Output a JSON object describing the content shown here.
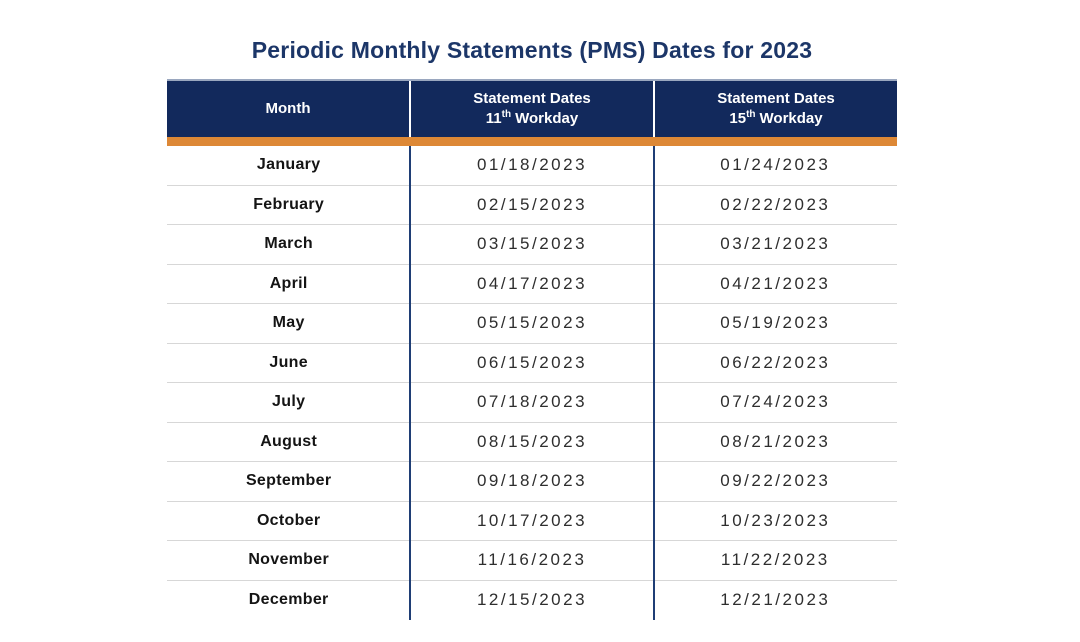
{
  "title": "Periodic Monthly Statements (PMS) Dates for 2023",
  "table": {
    "header": {
      "col_month": "Month",
      "col11_line1": "Statement Dates",
      "col11_num": "11",
      "col11_sup": "th",
      "col11_rest": "Workday",
      "col15_line1": "Statement Dates",
      "col15_num": "15",
      "col15_sup": "th",
      "col15_rest": "Workday"
    },
    "rows": [
      {
        "month": "January",
        "wd11": "01/18/2023",
        "wd15": "01/24/2023"
      },
      {
        "month": "February",
        "wd11": "02/15/2023",
        "wd15": "02/22/2023"
      },
      {
        "month": "March",
        "wd11": "03/15/2023",
        "wd15": "03/21/2023"
      },
      {
        "month": "April",
        "wd11": "04/17/2023",
        "wd15": "04/21/2023"
      },
      {
        "month": "May",
        "wd11": "05/15/2023",
        "wd15": "05/19/2023"
      },
      {
        "month": "June",
        "wd11": "06/15/2023",
        "wd15": "06/22/2023"
      },
      {
        "month": "July",
        "wd11": "07/18/2023",
        "wd15": "07/24/2023"
      },
      {
        "month": "August",
        "wd11": "08/15/2023",
        "wd15": "08/21/2023"
      },
      {
        "month": "September",
        "wd11": "09/18/2023",
        "wd15": "09/22/2023"
      },
      {
        "month": "October",
        "wd11": "10/17/2023",
        "wd15": "10/23/2023"
      },
      {
        "month": "November",
        "wd11": "11/16/2023",
        "wd15": "11/22/2023"
      },
      {
        "month": "December",
        "wd11": "12/15/2023",
        "wd15": "12/21/2023"
      }
    ]
  },
  "colors": {
    "header_navy": "#12295C",
    "accent_orange": "#DD8836",
    "title_navy": "#1C3668",
    "column_divider_navy": "#1F3E75",
    "row_divider_gray": "#D7D7D7",
    "header_top_edge": "#9AA7BF"
  }
}
